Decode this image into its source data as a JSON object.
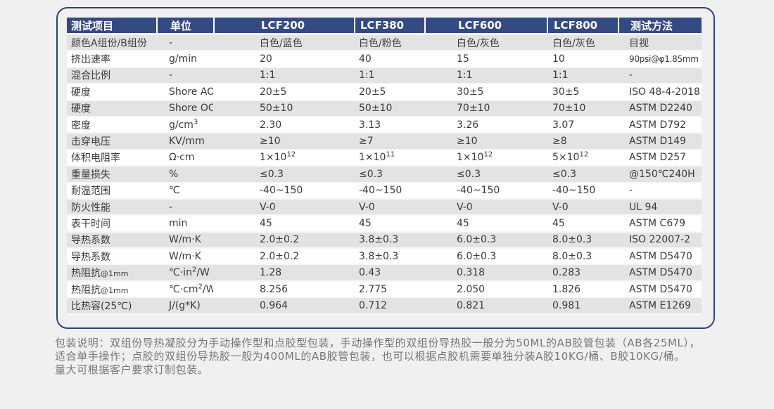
{
  "colors": {
    "page_bg": "#f0f0f0",
    "panel_border": "#2c4379",
    "header_bg": "#344a82",
    "header_text": "#ffffff",
    "row_alt_bg": "#e3e3e3",
    "row_bg": "#ffffff",
    "body_text": "#3a3a3a",
    "footer_text": "#767676"
  },
  "table": {
    "columns": [
      {
        "key": "item",
        "label": "测试项目"
      },
      {
        "key": "unit",
        "label": "单位"
      },
      {
        "key": "lcf200",
        "label": "LCF200"
      },
      {
        "key": "lcf380",
        "label": "LCF380"
      },
      {
        "key": "lcf600",
        "label": "LCF600"
      },
      {
        "key": "lcf800",
        "label": "LCF800"
      },
      {
        "key": "method",
        "label": "测试方法"
      }
    ],
    "rows": [
      [
        "颜色A组份/B组份",
        "-",
        "白色/蓝色",
        "白色/粉色",
        "白色/灰色",
        "白色/灰色",
        "目视"
      ],
      [
        "挤出速率",
        "g/min",
        "20",
        "40",
        "15",
        "10",
        {
          "t": "90psi@φ1.85mm",
          "compact": true
        }
      ],
      [
        "混合比例",
        "-",
        "1:1",
        "1:1",
        "1:1",
        "1:1",
        "-"
      ],
      [
        "硬度",
        "Shore AO",
        "20±5",
        "20±5",
        "30±5",
        "30±5",
        "ISO 48-4-2018"
      ],
      [
        "硬度",
        "Shore OO",
        "50±10",
        "50±10",
        "70±10",
        "70±10",
        "ASTM D2240"
      ],
      [
        "密度",
        {
          "t": "g/cm",
          "sup": "3"
        },
        "2.30",
        "3.13",
        "3.26",
        "3.07",
        "ASTM D792"
      ],
      [
        "击穿电压",
        "KV/mm",
        "≥10",
        "≥7",
        "≥10",
        "≥8",
        "ASTM D149"
      ],
      [
        "体积电阻率",
        "Ω·cm",
        {
          "t": "1×10",
          "sup": "12"
        },
        {
          "t": "1×10",
          "sup": "11"
        },
        {
          "t": "1×10",
          "sup": "12"
        },
        {
          "t": "5×10",
          "sup": "12"
        },
        "ASTM D257"
      ],
      [
        "重量损失",
        "%",
        "≤0.3",
        "≤0.3",
        "≤0.3",
        "≤0.3",
        "@150℃240H"
      ],
      [
        "耐温范围",
        "℃",
        "-40~150",
        "-40~150",
        "-40~150",
        "-40~150",
        "-"
      ],
      [
        "防火性能",
        "-",
        "V-0",
        "V-0",
        "V-0",
        "V-0",
        "UL 94"
      ],
      [
        "表干时间",
        "min",
        "45",
        "45",
        "45",
        "45",
        "ASTM C679"
      ],
      [
        "导热系数",
        "W/m·K",
        "2.0±0.2",
        "3.8±0.3",
        "6.0±0.3",
        "8.0±0.3",
        "ISO 22007-2"
      ],
      [
        "导热系数",
        "W/m·K",
        "2.0±0.2",
        "3.8±0.3",
        "6.0±0.3",
        "8.0±0.3",
        "ASTM D5470"
      ],
      [
        {
          "t": "热阻抗",
          "small": "@1mm"
        },
        {
          "t": "℃·in",
          "sup": "2",
          "tail": "/W"
        },
        "1.28",
        "0.43",
        "0.318",
        "0.283",
        "ASTM D5470"
      ],
      [
        {
          "t": "热阻抗",
          "small": "@1mm"
        },
        {
          "t": "℃·cm",
          "sup": "2",
          "tail": "/W"
        },
        "8.256",
        "2.775",
        "2.050",
        "1.826",
        "ASTM D5470"
      ],
      [
        "比热容(25℃)",
        "J/(g*K)",
        "0.964",
        "0.712",
        "0.821",
        "0.981",
        "ASTM E1269"
      ]
    ]
  },
  "footer": {
    "lines": [
      "包装说明：双组份导热凝胶分为手动操作型和点胶型包装，手动操作型的双组份导热胶一般分为50ML的AB胶管包装（AB各25ML），",
      "适合单手操作；点胶的双组份导热胶一般为400ML的AB胶管包装，也可以根据点胶机需要单独分装A胶10KG/桶、B胶10KG/桶。",
      "量大可根据客户要求订制包装。"
    ]
  }
}
